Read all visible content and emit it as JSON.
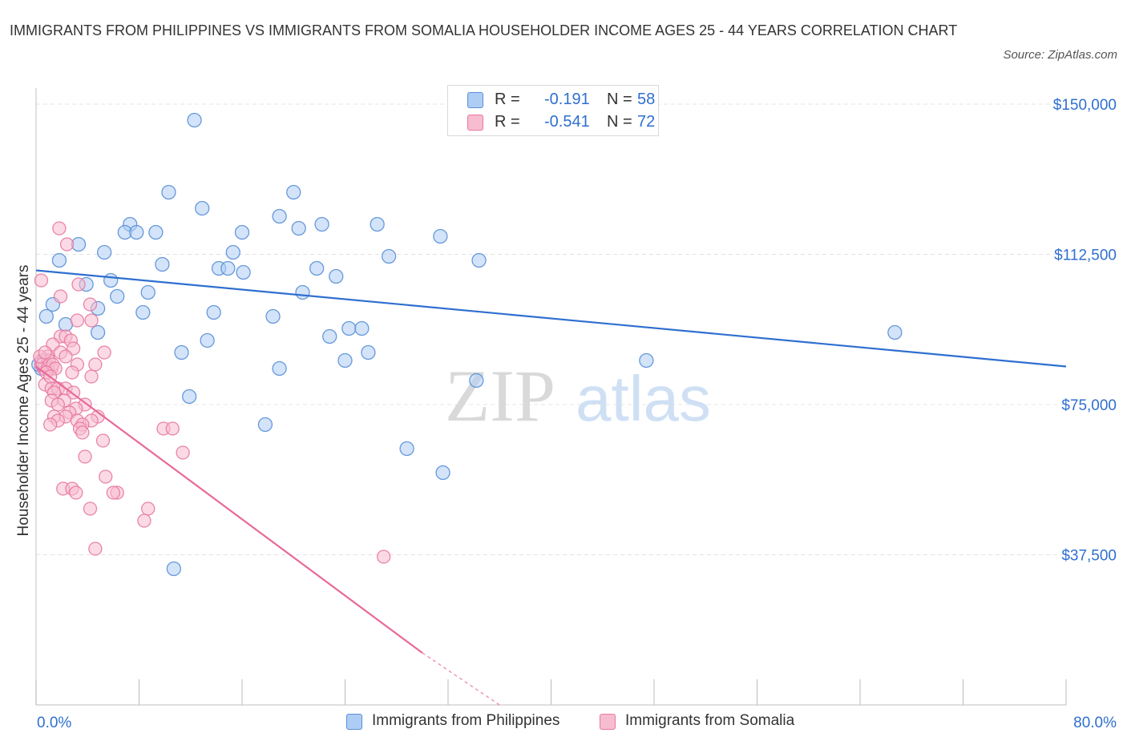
{
  "title": "IMMIGRANTS FROM PHILIPPINES VS IMMIGRANTS FROM SOMALIA HOUSEHOLDER INCOME AGES 25 - 44 YEARS CORRELATION CHART",
  "source": "Source: ZipAtlas.com",
  "watermark": {
    "zip": "ZIP",
    "atlas": "atlas"
  },
  "colors": {
    "philippines_fill": "#aecdf5",
    "philippines_stroke": "#5a8fd6",
    "philippines_line": "#2f6fd0",
    "somalia_fill": "#f7bcd0",
    "somalia_stroke": "#e8789f",
    "somalia_line": "#e8699a",
    "axis_label": "#2f6fd0",
    "grid": "#e4e4e4"
  },
  "legend": {
    "rows": [
      {
        "r_label": "R =",
        "r_value": "-0.191",
        "n_label": "N =",
        "n_value": "58"
      },
      {
        "r_label": "R =",
        "r_value": "-0.541",
        "n_label": "N =",
        "n_value": "72"
      }
    ]
  },
  "chart_data": {
    "type": "scatter",
    "title": "IMMIGRANTS FROM PHILIPPINES VS IMMIGRANTS FROM SOMALIA HOUSEHOLDER INCOME AGES 25 - 44 YEARS CORRELATION CHART",
    "xlabel": "",
    "ylabel": "Householder Income Ages 25 - 44 years",
    "xlim": [
      0,
      80
    ],
    "ylim": [
      0,
      150000
    ],
    "x_tick_labels": [
      "0.0%",
      "80.0%"
    ],
    "y_ticks": [
      37500,
      75000,
      112500,
      150000
    ],
    "y_tick_labels": [
      "$37,500",
      "$75,000",
      "$112,500",
      "$150,000"
    ],
    "grid": true,
    "legend_placement": "top-center",
    "series": [
      {
        "name": "Immigrants from Philippines",
        "points": [
          [
            12.3,
            146000
          ],
          [
            10.3,
            128000
          ],
          [
            12.9,
            124000
          ],
          [
            20.0,
            128000
          ],
          [
            18.9,
            122000
          ],
          [
            7.3,
            120000
          ],
          [
            6.9,
            118000
          ],
          [
            7.8,
            118000
          ],
          [
            9.3,
            118000
          ],
          [
            16.0,
            118000
          ],
          [
            20.4,
            119000
          ],
          [
            22.2,
            120000
          ],
          [
            26.5,
            120000
          ],
          [
            31.4,
            117000
          ],
          [
            3.3,
            115000
          ],
          [
            5.3,
            113000
          ],
          [
            15.3,
            113000
          ],
          [
            1.8,
            111000
          ],
          [
            27.4,
            112000
          ],
          [
            34.4,
            111000
          ],
          [
            9.8,
            110000
          ],
          [
            14.2,
            109000
          ],
          [
            14.9,
            109000
          ],
          [
            16.1,
            108000
          ],
          [
            21.8,
            109000
          ],
          [
            23.3,
            107000
          ],
          [
            5.8,
            106000
          ],
          [
            3.9,
            105000
          ],
          [
            8.7,
            103000
          ],
          [
            20.7,
            103000
          ],
          [
            6.3,
            102000
          ],
          [
            1.3,
            100000
          ],
          [
            4.8,
            99000
          ],
          [
            8.3,
            98000
          ],
          [
            13.8,
            98000
          ],
          [
            0.8,
            97000
          ],
          [
            18.4,
            97000
          ],
          [
            2.3,
            95000
          ],
          [
            24.3,
            94000
          ],
          [
            25.3,
            94000
          ],
          [
            4.8,
            93000
          ],
          [
            22.8,
            92000
          ],
          [
            13.3,
            91000
          ],
          [
            66.7,
            93000
          ],
          [
            11.3,
            88000
          ],
          [
            25.8,
            88000
          ],
          [
            24.0,
            86000
          ],
          [
            47.4,
            86000
          ],
          [
            18.9,
            84000
          ],
          [
            34.2,
            81000
          ],
          [
            11.9,
            77000
          ],
          [
            17.8,
            70000
          ],
          [
            0.4,
            84000
          ],
          [
            0.6,
            86000
          ],
          [
            28.8,
            64000
          ],
          [
            31.6,
            58000
          ],
          [
            10.7,
            34000
          ],
          [
            0.2,
            85000
          ]
        ],
        "trend": {
          "x": [
            0,
            80
          ],
          "y": [
            108500,
            84500
          ]
        }
      },
      {
        "name": "Immigrants from Somalia",
        "points": [
          [
            1.8,
            119000
          ],
          [
            2.4,
            115000
          ],
          [
            0.4,
            106000
          ],
          [
            3.3,
            105000
          ],
          [
            1.9,
            102000
          ],
          [
            4.2,
            100000
          ],
          [
            3.2,
            96000
          ],
          [
            4.3,
            96000
          ],
          [
            1.9,
            92000
          ],
          [
            2.3,
            92000
          ],
          [
            2.7,
            91000
          ],
          [
            1.3,
            90000
          ],
          [
            2.9,
            89000
          ],
          [
            1.9,
            88000
          ],
          [
            5.3,
            88000
          ],
          [
            2.3,
            87000
          ],
          [
            0.4,
            86000
          ],
          [
            0.9,
            87000
          ],
          [
            3.2,
            85000
          ],
          [
            4.6,
            85000
          ],
          [
            0.6,
            84000
          ],
          [
            1.2,
            84000
          ],
          [
            2.8,
            83000
          ],
          [
            4.3,
            82000
          ],
          [
            0.7,
            80000
          ],
          [
            1.2,
            79000
          ],
          [
            1.7,
            79000
          ],
          [
            2.3,
            79000
          ],
          [
            1.4,
            78000
          ],
          [
            2.9,
            78000
          ],
          [
            1.2,
            76000
          ],
          [
            2.2,
            76000
          ],
          [
            1.7,
            75000
          ],
          [
            3.8,
            75000
          ],
          [
            3.1,
            74000
          ],
          [
            2.6,
            73000
          ],
          [
            1.4,
            72000
          ],
          [
            2.3,
            72000
          ],
          [
            4.8,
            72000
          ],
          [
            1.7,
            71000
          ],
          [
            3.2,
            71000
          ],
          [
            4.3,
            71000
          ],
          [
            3.6,
            70000
          ],
          [
            1.1,
            70000
          ],
          [
            3.4,
            69000
          ],
          [
            9.9,
            69000
          ],
          [
            10.6,
            69000
          ],
          [
            3.6,
            68000
          ],
          [
            5.2,
            66000
          ],
          [
            11.4,
            63000
          ],
          [
            3.8,
            62000
          ],
          [
            5.4,
            57000
          ],
          [
            2.1,
            54000
          ],
          [
            2.8,
            54000
          ],
          [
            6.3,
            53000
          ],
          [
            3.1,
            53000
          ],
          [
            6.0,
            53000
          ],
          [
            4.2,
            49000
          ],
          [
            8.7,
            49000
          ],
          [
            8.4,
            46000
          ],
          [
            4.6,
            39000
          ],
          [
            27.0,
            37000
          ],
          [
            0.4,
            85000
          ],
          [
            0.5,
            85000
          ],
          [
            0.9,
            84000
          ],
          [
            1.0,
            86000
          ],
          [
            1.3,
            85000
          ],
          [
            1.5,
            84000
          ],
          [
            0.8,
            83000
          ],
          [
            1.1,
            82000
          ],
          [
            0.3,
            87000
          ],
          [
            0.7,
            88000
          ]
        ],
        "trend": {
          "x": [
            0,
            30.0
          ],
          "y": [
            84500,
            13000
          ]
        },
        "trend_dashed": {
          "x": [
            30.0,
            36.0
          ],
          "y": [
            13000,
            0
          ]
        }
      }
    ]
  }
}
